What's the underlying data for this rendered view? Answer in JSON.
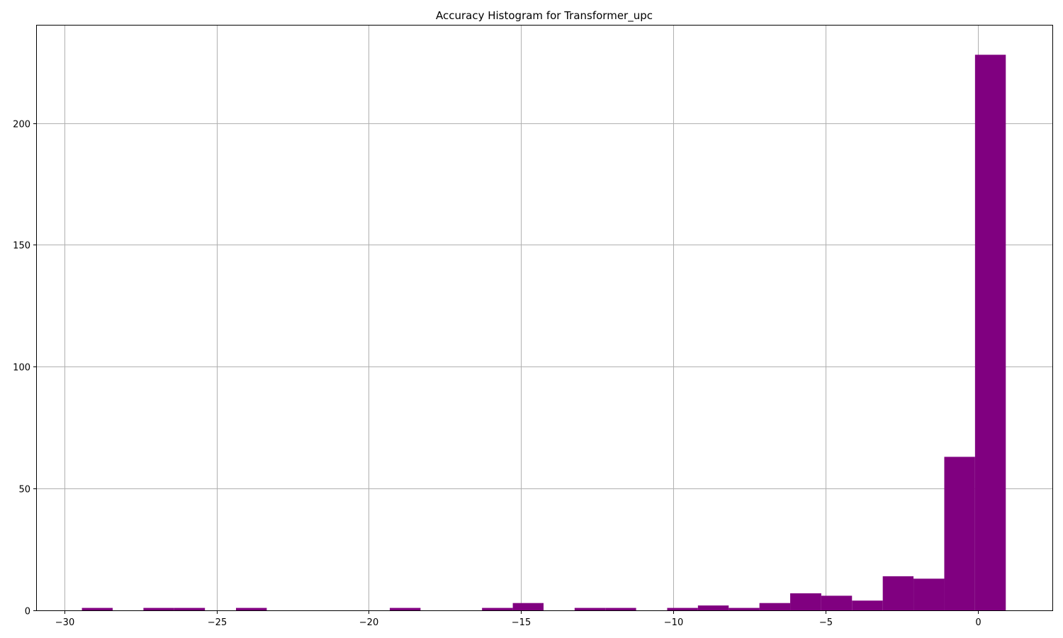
{
  "chart_data": {
    "type": "bar",
    "title": "Accuracy Histogram for Transformer_upc",
    "xlabel": "",
    "ylabel": "",
    "xlim": [
      -30.9,
      2.45
    ],
    "ylim": [
      0,
      240
    ],
    "grid": true,
    "color": "#800080",
    "x_ticks": [
      -30,
      -25,
      -20,
      -15,
      -10,
      -5,
      0
    ],
    "x_tick_labels": [
      "−30",
      "−25",
      "−20",
      "−15",
      "−10",
      "−5",
      "0"
    ],
    "y_ticks": [
      0,
      50,
      100,
      150,
      200
    ],
    "y_tick_labels": [
      "0",
      "50",
      "100",
      "150",
      "200"
    ],
    "bins": [
      {
        "start": -29.42,
        "end": -28.41,
        "count": 1
      },
      {
        "start": -27.4,
        "end": -26.39,
        "count": 1
      },
      {
        "start": -26.39,
        "end": -25.38,
        "count": 1
      },
      {
        "start": -24.36,
        "end": -23.35,
        "count": 1
      },
      {
        "start": -19.31,
        "end": -18.3,
        "count": 1
      },
      {
        "start": -16.28,
        "end": -15.27,
        "count": 1
      },
      {
        "start": -15.27,
        "end": -14.26,
        "count": 3
      },
      {
        "start": -13.24,
        "end": -12.23,
        "count": 1
      },
      {
        "start": -12.23,
        "end": -11.22,
        "count": 1
      },
      {
        "start": -10.2,
        "end": -9.19,
        "count": 1
      },
      {
        "start": -9.19,
        "end": -8.18,
        "count": 2
      },
      {
        "start": -8.18,
        "end": -7.17,
        "count": 1
      },
      {
        "start": -7.17,
        "end": -6.16,
        "count": 3
      },
      {
        "start": -6.16,
        "end": -5.14,
        "count": 7
      },
      {
        "start": -5.14,
        "end": -4.13,
        "count": 6
      },
      {
        "start": -4.13,
        "end": -3.12,
        "count": 4
      },
      {
        "start": -3.12,
        "end": -2.11,
        "count": 14
      },
      {
        "start": -2.11,
        "end": -1.1,
        "count": 13
      },
      {
        "start": -1.1,
        "end": -0.09,
        "count": 63
      },
      {
        "start": -0.09,
        "end": 0.92,
        "count": 228
      }
    ]
  }
}
